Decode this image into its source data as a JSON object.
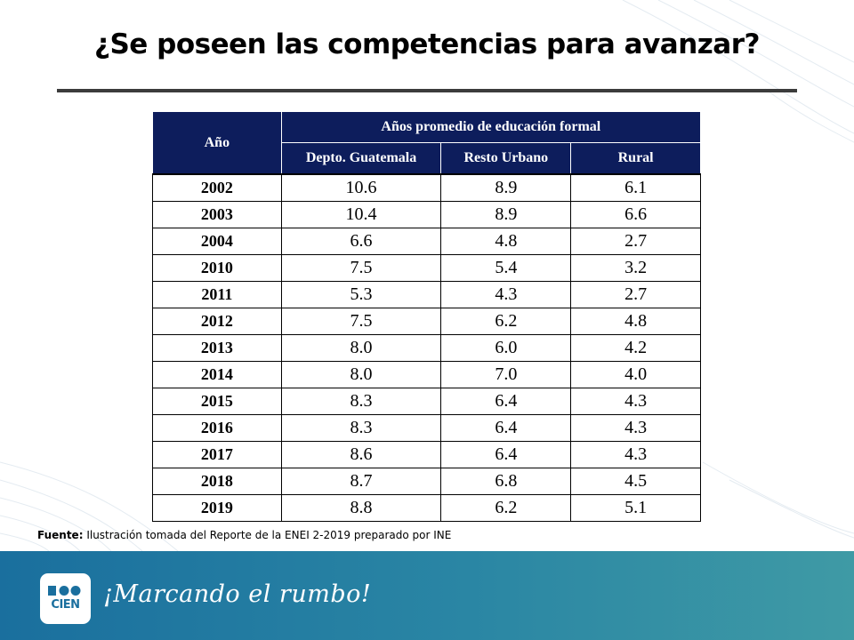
{
  "slide": {
    "title": "¿Se poseen las competencias para avanzar?"
  },
  "table": {
    "year_header": "Año",
    "group_header": "Años promedio  de educación formal",
    "sub_headers": [
      "Depto. Guatemala",
      "Resto Urbano",
      "Rural"
    ],
    "rows": [
      {
        "year": "2002",
        "depto": "10.6",
        "urbano": "8.9",
        "rural": "6.1"
      },
      {
        "year": "2003",
        "depto": "10.4",
        "urbano": "8.9",
        "rural": "6.6"
      },
      {
        "year": "2004",
        "depto": "6.6",
        "urbano": "4.8",
        "rural": "2.7"
      },
      {
        "year": "2010",
        "depto": "7.5",
        "urbano": "5.4",
        "rural": "3.2"
      },
      {
        "year": "2011",
        "depto": "5.3",
        "urbano": "4.3",
        "rural": "2.7"
      },
      {
        "year": "2012",
        "depto": "7.5",
        "urbano": "6.2",
        "rural": "4.8"
      },
      {
        "year": "2013",
        "depto": "8.0",
        "urbano": "6.0",
        "rural": "4.2"
      },
      {
        "year": "2014",
        "depto": "8.0",
        "urbano": "7.0",
        "rural": "4.0"
      },
      {
        "year": "2015",
        "depto": "8.3",
        "urbano": "6.4",
        "rural": "4.3"
      },
      {
        "year": "2016",
        "depto": "8.3",
        "urbano": "6.4",
        "rural": "4.3"
      },
      {
        "year": "2017",
        "depto": "8.6",
        "urbano": "6.4",
        "rural": "4.3"
      },
      {
        "year": "2018",
        "depto": "8.7",
        "urbano": "6.8",
        "rural": "4.5"
      },
      {
        "year": "2019",
        "depto": "8.8",
        "urbano": "6.2",
        "rural": "5.1"
      }
    ]
  },
  "source": {
    "label": "Fuente:",
    "text": " Ilustración tomada del Reporte de la ENEI 2-2019 preparado por INE"
  },
  "footer": {
    "logo_text": "CIEN",
    "slogan": "¡Marcando el rumbo!"
  },
  "colors": {
    "header_bg": "#0d1d5c",
    "footer_start": "#1a6f9e",
    "footer_end": "#3f9aa5"
  }
}
